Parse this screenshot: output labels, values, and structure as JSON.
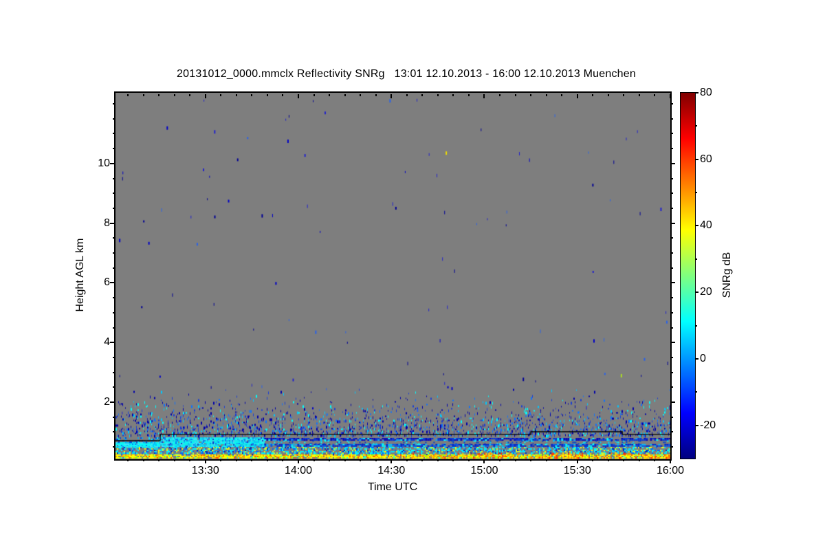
{
  "chart_data": {
    "type": "heatmap",
    "title": "20131012_0000.mmclx Reflectivity SNRg   13:01 12.10.2013 - 16:00 12.10.2013 Muenchen",
    "xlabel": "Time UTC",
    "ylabel": "Height AGL km",
    "station": "Muenchen",
    "file": "20131012_0000.mmclx",
    "time_start": "13:01 12.10.2013",
    "time_end": "16:00 12.10.2013",
    "x_duration_min": 179,
    "x_major_ticks": [
      {
        "label": "13:30",
        "min": 29
      },
      {
        "label": "14:00",
        "min": 59
      },
      {
        "label": "14:30",
        "min": 89
      },
      {
        "label": "15:00",
        "min": 119
      },
      {
        "label": "15:30",
        "min": 149
      },
      {
        "label": "16:00",
        "min": 179
      }
    ],
    "x_minor_step_min": 5,
    "x_minor_start_min": 4,
    "y_range_km": [
      0.088,
      12.37
    ],
    "y_major_ticks": [
      2,
      4,
      6,
      8,
      10
    ],
    "y_minor_step_km": 0.5,
    "background_color": "#7e7e7e",
    "axis_color": "#000000",
    "colorbar": {
      "label": "SNRg dB",
      "min": -30,
      "max": 80,
      "ticks": [
        80,
        60,
        40,
        20,
        0,
        -20
      ],
      "minor_step": 10,
      "gradient_bottom_to_top": [
        [
          "#000080",
          0.0
        ],
        [
          "#0000ff",
          0.125
        ],
        [
          "#00ffff",
          0.375
        ],
        [
          "#ffff00",
          0.625
        ],
        [
          "#ff0000",
          0.875
        ],
        [
          "#800000",
          1.0
        ]
      ]
    },
    "noise_specks": {
      "count": 95,
      "h_top_km": 12.3,
      "h_bot_km": 1.6,
      "colors": [
        "#000096",
        "#0000c8",
        "#2323cd",
        "#2a62e8"
      ]
    },
    "pbl_ramp": {
      "h_top_km": 2.45,
      "h_bot_km": 0.9,
      "p_top": 0.015,
      "p_bot": 0.52,
      "colors": [
        [
          "#0000aa",
          0.38
        ],
        [
          "#1a3fd4",
          0.22
        ],
        [
          "#0f73ff",
          0.14
        ],
        [
          "#00c8ff",
          0.14
        ],
        [
          "#00ffff",
          0.12
        ]
      ]
    },
    "black_line_km": [
      {
        "t": 0,
        "h": 0.71
      },
      {
        "t": 14.4,
        "h": 0.71
      },
      {
        "t": 14.4,
        "h": 0.92
      },
      {
        "t": 134,
        "h": 0.92
      },
      {
        "t": 134,
        "h": 1.01
      },
      {
        "t": 163.5,
        "h": 1.01
      },
      {
        "t": 163.5,
        "h": 0.92
      },
      {
        "t": 179,
        "h": 0.92
      }
    ],
    "bands": [
      {
        "name": "cyan-solid-left",
        "t0": 0,
        "t1": 14,
        "h_top": 0.66,
        "h_bot": 0.5,
        "density": 0.95,
        "cell": [
          2,
          2
        ],
        "colors": [
          [
            "#00ffff",
            0.5
          ],
          [
            "#40e8ff",
            0.2
          ],
          [
            "#00ccff",
            0.2
          ],
          [
            "#0080ff",
            0.1
          ]
        ]
      },
      {
        "name": "speckle-under-left-line",
        "t0": 0,
        "t1": 14,
        "h_top": 0.82,
        "h_bot": 0.66,
        "density": 0.3,
        "cell": [
          2,
          2
        ],
        "colors": [
          [
            "#0040dd",
            0.5
          ],
          [
            "#00aaff",
            0.3
          ],
          [
            "#00ffff",
            0.2
          ]
        ]
      },
      {
        "name": "cyan-solid-band",
        "t0": 14,
        "t1": 48,
        "h_top": 0.82,
        "h_bot": 0.52,
        "density": 0.96,
        "cell": [
          2,
          2
        ],
        "colors": [
          [
            "#00ffff",
            0.45
          ],
          [
            "#40e8ff",
            0.2
          ],
          [
            "#00ccff",
            0.2
          ],
          [
            "#0080ff",
            0.1
          ],
          [
            "#1133cc",
            0.05
          ]
        ]
      },
      {
        "name": "darkblue-band",
        "t0": 48,
        "t1": 179,
        "h_top": 0.8,
        "h_bot": 0.72,
        "density": 0.85,
        "cell": [
          3,
          2
        ],
        "colors": [
          [
            "#0000bb",
            0.45
          ],
          [
            "#0033dd",
            0.35
          ],
          [
            "#00aaff",
            0.1
          ],
          [
            "#00ffff",
            0.1
          ]
        ]
      },
      {
        "name": "mid-gap-speckle",
        "t0": 48,
        "t1": 179,
        "h_top": 0.72,
        "h_bot": 0.6,
        "density": 0.18,
        "cell": [
          2,
          2
        ],
        "colors": [
          [
            "#0044cc",
            0.5
          ],
          [
            "#00ccff",
            0.3
          ],
          [
            "#00ffff",
            0.2
          ]
        ]
      },
      {
        "name": "blue-band",
        "t0": 48,
        "t1": 179,
        "h_top": 0.6,
        "h_bot": 0.52,
        "density": 0.8,
        "cell": [
          3,
          2
        ],
        "colors": [
          [
            "#0022cc",
            0.5
          ],
          [
            "#0055ee",
            0.25
          ],
          [
            "#00bbff",
            0.15
          ],
          [
            "#00ffff",
            0.1
          ]
        ]
      },
      {
        "name": "cyan-speckle-band",
        "t0": 0,
        "t1": 179,
        "h_top": 0.5,
        "h_bot": 0.25,
        "density": 0.5,
        "cell": [
          2,
          2
        ],
        "colors": [
          [
            "#00e5ff",
            0.3
          ],
          [
            "#00ffff",
            0.2
          ],
          [
            "#0066ff",
            0.2
          ],
          [
            "#0022bb",
            0.12
          ],
          [
            "#ccff33",
            0.1
          ],
          [
            "#ffff00",
            0.08
          ]
        ]
      },
      {
        "name": "yellow-band",
        "t0": 0,
        "t1": 179,
        "h_top": 0.25,
        "h_bot": 0.135,
        "density": 0.85,
        "cell": [
          2,
          2
        ],
        "colors": [
          [
            "#ffff00",
            0.4
          ],
          [
            "#ffd400",
            0.18
          ],
          [
            "#aaff00",
            0.15
          ],
          [
            "#ff9900",
            0.12
          ],
          [
            "#33ffcc",
            0.08
          ],
          [
            "#ff5500",
            0.07
          ]
        ]
      },
      {
        "name": "orange-overlay-right",
        "t0": 95,
        "t1": 179,
        "h_top": 0.3,
        "h_bot": 0.135,
        "density": 0.2,
        "cell": [
          2,
          3
        ],
        "colors": [
          [
            "#ff8800",
            0.4
          ],
          [
            "#ffcc00",
            0.3
          ],
          [
            "#ff3300",
            0.3
          ]
        ]
      }
    ],
    "highlight_specks": [
      {
        "t": 106.5,
        "h": 10.36,
        "color": "#eedd00"
      },
      {
        "t": 163.0,
        "h": 2.9,
        "color": "#aadd22"
      }
    ]
  }
}
